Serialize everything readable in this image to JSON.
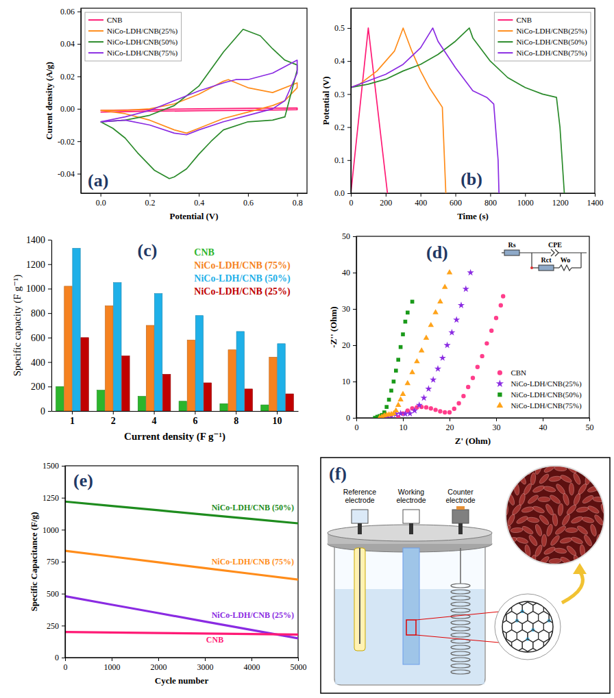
{
  "chart_data": [
    {
      "type": "line",
      "title": "(a)",
      "xlabel": "Potential (V)",
      "ylabel": "Curent density (A/g)",
      "xlim": [
        -0.08,
        0.84
      ],
      "ylim": [
        -0.052,
        0.062
      ],
      "xticks": [
        {
          "value": 0,
          "label": "0.0"
        },
        0.2,
        0.4,
        0.6,
        0.8
      ],
      "yticks": [
        -0.04,
        -0.02,
        {
          "value": 0,
          "label": "0.00"
        },
        0.02,
        0.04,
        0.06
      ],
      "legend": "top-left",
      "series": [
        {
          "name": "CNB",
          "color": "#ff1a75",
          "x": [
            0,
            0.2,
            0.4,
            0.6,
            0.8,
            0.8,
            0.6,
            0.4,
            0.2,
            0
          ],
          "values": [
            -0.001,
            -0.0005,
            0,
            0.0003,
            0.0005,
            -0.0005,
            -0.001,
            -0.0012,
            -0.0015,
            -0.002
          ]
        },
        {
          "name": "NiCo-LDH/CNB(25%)",
          "color": "#ff8c1a",
          "x": [
            0,
            0.1,
            0.2,
            0.3,
            0.4,
            0.5,
            0.52,
            0.6,
            0.7,
            0.8,
            0.8,
            0.75,
            0.7,
            0.6,
            0.5,
            0.4,
            0.35,
            0.3,
            0.2,
            0.1,
            0
          ],
          "values": [
            -0.001,
            -0.001,
            0,
            0.003,
            0.009,
            0.017,
            0.018,
            0.013,
            0.01,
            0.016,
            0.013,
            0.005,
            0.002,
            -0.002,
            -0.006,
            -0.012,
            -0.015,
            -0.013,
            -0.007,
            -0.003,
            -0.001
          ]
        },
        {
          "name": "NiCo-LDH/CNB(50%)",
          "color": "#2a8a2a",
          "x": [
            0,
            0.1,
            0.2,
            0.3,
            0.4,
            0.5,
            0.58,
            0.65,
            0.7,
            0.75,
            0.8,
            0.8,
            0.75,
            0.7,
            0.6,
            0.5,
            0.45,
            0.4,
            0.35,
            0.3,
            0.28,
            0.22,
            0.15,
            0.1,
            0.05,
            0
          ],
          "values": [
            -0.008,
            -0.007,
            -0.004,
            0.002,
            0.014,
            0.035,
            0.049,
            0.045,
            0.037,
            0.03,
            0.027,
            0.024,
            -0.005,
            -0.007,
            -0.008,
            -0.013,
            -0.02,
            -0.028,
            -0.037,
            -0.042,
            -0.043,
            -0.038,
            -0.027,
            -0.018,
            -0.012,
            -0.008
          ]
        },
        {
          "name": "NiCo-LDH/CNB(75%)",
          "color": "#8a2be2",
          "x": [
            0,
            0.1,
            0.2,
            0.3,
            0.4,
            0.5,
            0.55,
            0.6,
            0.7,
            0.8,
            0.8,
            0.75,
            0.7,
            0.6,
            0.5,
            0.4,
            0.35,
            0.3,
            0.2,
            0.1,
            0
          ],
          "values": [
            -0.008,
            -0.005,
            -0.001,
            0.005,
            0.011,
            0.016,
            0.018,
            0.018,
            0.022,
            0.03,
            0.022,
            0.005,
            0,
            -0.004,
            -0.008,
            -0.013,
            -0.016,
            -0.015,
            -0.01,
            -0.007,
            -0.008
          ]
        }
      ]
    },
    {
      "type": "line",
      "title": "(b)",
      "xlabel": "Time (s)",
      "ylabel": "Potential (V)",
      "xlim": [
        0,
        1400
      ],
      "ylim": [
        0,
        0.56
      ],
      "xticks": [
        0,
        200,
        400,
        600,
        800,
        1000,
        1200,
        1400
      ],
      "yticks": [
        {
          "value": 0,
          "label": "0.0"
        },
        0.1,
        0.2,
        0.3,
        0.4,
        0.5
      ],
      "legend": "top-right",
      "series": [
        {
          "name": "CNB",
          "color": "#ff1a75",
          "x": [
            0,
            100,
            210
          ],
          "values": [
            0,
            0.5,
            0
          ]
        },
        {
          "name": "NiCo-LDH/CNB(25%)",
          "color": "#ff8c1a",
          "x": [
            0,
            0,
            50,
            150,
            250,
            300,
            350,
            400,
            450,
            500,
            525,
            545
          ],
          "values": [
            0,
            0.32,
            0.33,
            0.37,
            0.43,
            0.5,
            0.43,
            0.37,
            0.32,
            0.28,
            0.26,
            0
          ]
        },
        {
          "name": "NiCo-LDH/CNB(50%)",
          "color": "#2a8a2a",
          "x": [
            0,
            0,
            100,
            200,
            300,
            400,
            500,
            600,
            680,
            700,
            800,
            900,
            1000,
            1100,
            1180,
            1200,
            1225
          ],
          "values": [
            0,
            0.32,
            0.33,
            0.345,
            0.37,
            0.39,
            0.42,
            0.46,
            0.5,
            0.47,
            0.4,
            0.35,
            0.32,
            0.3,
            0.29,
            0.2,
            0
          ]
        },
        {
          "name": "NiCo-LDH/CNB(75%)",
          "color": "#8a2be2",
          "x": [
            0,
            0,
            100,
            200,
            300,
            400,
            470,
            500,
            600,
            700,
            780,
            820,
            845,
            850
          ],
          "values": [
            0,
            0.32,
            0.34,
            0.36,
            0.39,
            0.44,
            0.5,
            0.46,
            0.38,
            0.31,
            0.29,
            0.27,
            0.1,
            0
          ]
        }
      ]
    },
    {
      "type": "bar",
      "title": "(c)",
      "xlabel": "Current density (F g⁻¹)",
      "ylabel": "Specific capacity (F g⁻¹)",
      "categories": [
        "1",
        "2",
        "4",
        "6",
        "8",
        "10"
      ],
      "ylim": [
        0,
        1400
      ],
      "yticks": [
        0,
        200,
        400,
        600,
        800,
        1000,
        1200,
        1400
      ],
      "legend": "top-right",
      "series": [
        {
          "name": "CNB",
          "color": "#2cb52c",
          "values": [
            200,
            170,
            120,
            80,
            60,
            50
          ]
        },
        {
          "name": "NiCo-LDH/CNB (75%)",
          "color": "#f58220",
          "values": [
            1020,
            860,
            700,
            580,
            500,
            440
          ]
        },
        {
          "name": "NiCo-LDH/CNB (50%)",
          "color": "#1fb0e8",
          "values": [
            1330,
            1050,
            960,
            780,
            650,
            550
          ]
        },
        {
          "name": "NiCo-LDH/CNB (25%)",
          "color": "#c00000",
          "values": [
            600,
            450,
            300,
            230,
            180,
            140
          ]
        }
      ]
    },
    {
      "type": "scatter",
      "title": "(d)",
      "xlabel": "Z' (Ohm)",
      "ylabel": "-Z'' (Ohm)",
      "xlim": [
        0,
        50
      ],
      "ylim": [
        0,
        50
      ],
      "xticks": [
        0,
        10,
        20,
        30,
        40,
        50
      ],
      "yticks": [
        0,
        10,
        20,
        30,
        40,
        50
      ],
      "legend": "bottom-right",
      "annotations": [
        "Rs",
        "CPE",
        "Rct",
        "Wo"
      ],
      "series": [
        {
          "name": "CBN",
          "color": "#ff3d8b",
          "marker": "circle",
          "x": [
            9,
            10,
            11,
            12,
            13,
            14,
            15,
            16,
            17,
            18,
            19,
            20,
            21,
            22,
            23,
            24,
            25,
            26,
            27,
            28,
            29,
            30,
            31,
            31.5
          ],
          "values": [
            0.2,
            1.2,
            2,
            2.6,
            2.9,
            3,
            2.9,
            2.6,
            2.2,
            1.8,
            1.5,
            1.5,
            2.5,
            4,
            6,
            8.5,
            11,
            14,
            17,
            20.5,
            24,
            27.5,
            31,
            33.5
          ]
        },
        {
          "name": "NiCo-LDH/CNB(25%)",
          "color": "#8a2be2",
          "marker": "star",
          "x": [
            6.5,
            7.5,
            8.5,
            9.5,
            10.5,
            11.5,
            12.5,
            13.5,
            14.5,
            15.5,
            16.5,
            17.5,
            18.5,
            19.5,
            20.5,
            21.5,
            22.5,
            23.5,
            24.5
          ],
          "values": [
            0.1,
            0.6,
            1,
            1.2,
            1.1,
            1.2,
            2,
            3.5,
            5.5,
            8,
            10.5,
            13.5,
            16.5,
            20,
            23.5,
            27,
            31,
            35.5,
            40
          ]
        },
        {
          "name": "NiCo-LDH/CNB(50%)",
          "color": "#1a9a1a",
          "marker": "square",
          "x": [
            4,
            4.5,
            5,
            5.5,
            6,
            6.5,
            7,
            7.5,
            8,
            8.5,
            9,
            9.5,
            10,
            10.5,
            11,
            12
          ],
          "values": [
            0,
            0.3,
            0.5,
            0.8,
            1.5,
            3,
            5,
            7.5,
            10,
            13,
            16,
            19.5,
            23,
            26.5,
            29,
            32
          ]
        },
        {
          "name": "NiCo-LDH/CNB(75%)",
          "color": "#ffa31a",
          "marker": "triangle",
          "x": [
            5,
            5.5,
            6,
            6.5,
            7,
            7.5,
            8,
            8.5,
            9,
            9.5,
            10,
            11,
            12,
            13,
            14,
            15,
            16,
            17,
            18,
            19,
            20
          ],
          "values": [
            0,
            0.3,
            0.6,
            0.8,
            0.9,
            1,
            1.2,
            2,
            3.5,
            5,
            6.5,
            9.5,
            12.5,
            15.5,
            18.5,
            22,
            25.5,
            29,
            32,
            36,
            40
          ]
        }
      ]
    },
    {
      "type": "line",
      "title": "(e)",
      "xlabel": "Cycle number",
      "ylabel": "Specific Capacitance (F/g)",
      "xlim": [
        0,
        5000
      ],
      "ylim": [
        0,
        1500
      ],
      "xticks": [
        0,
        1000,
        2000,
        3000,
        4000,
        5000
      ],
      "yticks": [
        0,
        250,
        500,
        750,
        1000,
        1250,
        1500
      ],
      "series": [
        {
          "name": "NiCo-LDH/CNB (50%)",
          "color": "#1e8c1e",
          "x": [
            0,
            1000,
            2000,
            3000,
            4000,
            5000
          ],
          "values": [
            1220,
            1186,
            1152,
            1118,
            1084,
            1050
          ]
        },
        {
          "name": "NiCo-LDH/CNB (75%)",
          "color": "#ff8c1a",
          "x": [
            0,
            1000,
            2000,
            3000,
            4000,
            5000
          ],
          "values": [
            835,
            790,
            745,
            700,
            655,
            610
          ]
        },
        {
          "name": "NiCo-LDH/CNB (25%)",
          "color": "#8a2be2",
          "x": [
            0,
            1000,
            2000,
            3000,
            4000,
            5000
          ],
          "values": [
            480,
            414,
            348,
            282,
            216,
            150
          ]
        },
        {
          "name": "CNB",
          "color": "#ff1a75",
          "x": [
            0,
            1000,
            2000,
            3000,
            4000,
            5000
          ],
          "values": [
            200,
            196,
            192,
            188,
            184,
            180
          ]
        }
      ]
    }
  ],
  "diagram": {
    "title": "(f)",
    "electrodes": [
      "Reference electrode",
      "Working electrode",
      "Counter electrode"
    ]
  }
}
